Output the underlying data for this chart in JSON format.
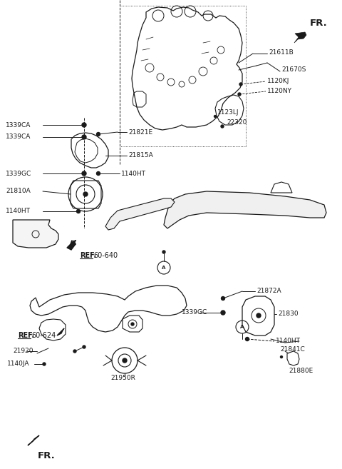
{
  "bg_color": "#ffffff",
  "line_color": "#1a1a1a",
  "labels": {
    "FR_top": "FR.",
    "FR_bottom": "FR.",
    "21611B": "21611B",
    "21670S": "21670S",
    "1120KJ": "1120KJ",
    "1120NY": "1120NY",
    "1123LJ": "1123LJ",
    "22320": "22320",
    "1339CA_1": "1339CA",
    "1339CA_2": "1339CA",
    "21821E": "21821E",
    "21815A": "21815A",
    "1339GC_1": "1339GC",
    "1140HT_1": "1140HT",
    "21810A": "21810A",
    "1140HT_2": "1140HT",
    "REF60_640": "REF.",
    "REF60_640b": "60-640",
    "1339GC_2": "1339GC",
    "1140HT_3": "1140HT",
    "21872A": "21872A",
    "21830": "21830",
    "21841C": "21841C",
    "21880E": "21880E",
    "REF60_624": "REF.",
    "REF60_624b": "60-624",
    "21920": "21920",
    "1140JA": "1140JA",
    "21950R": "21950R"
  },
  "fs": 6.5,
  "fs_fr": 9.5
}
